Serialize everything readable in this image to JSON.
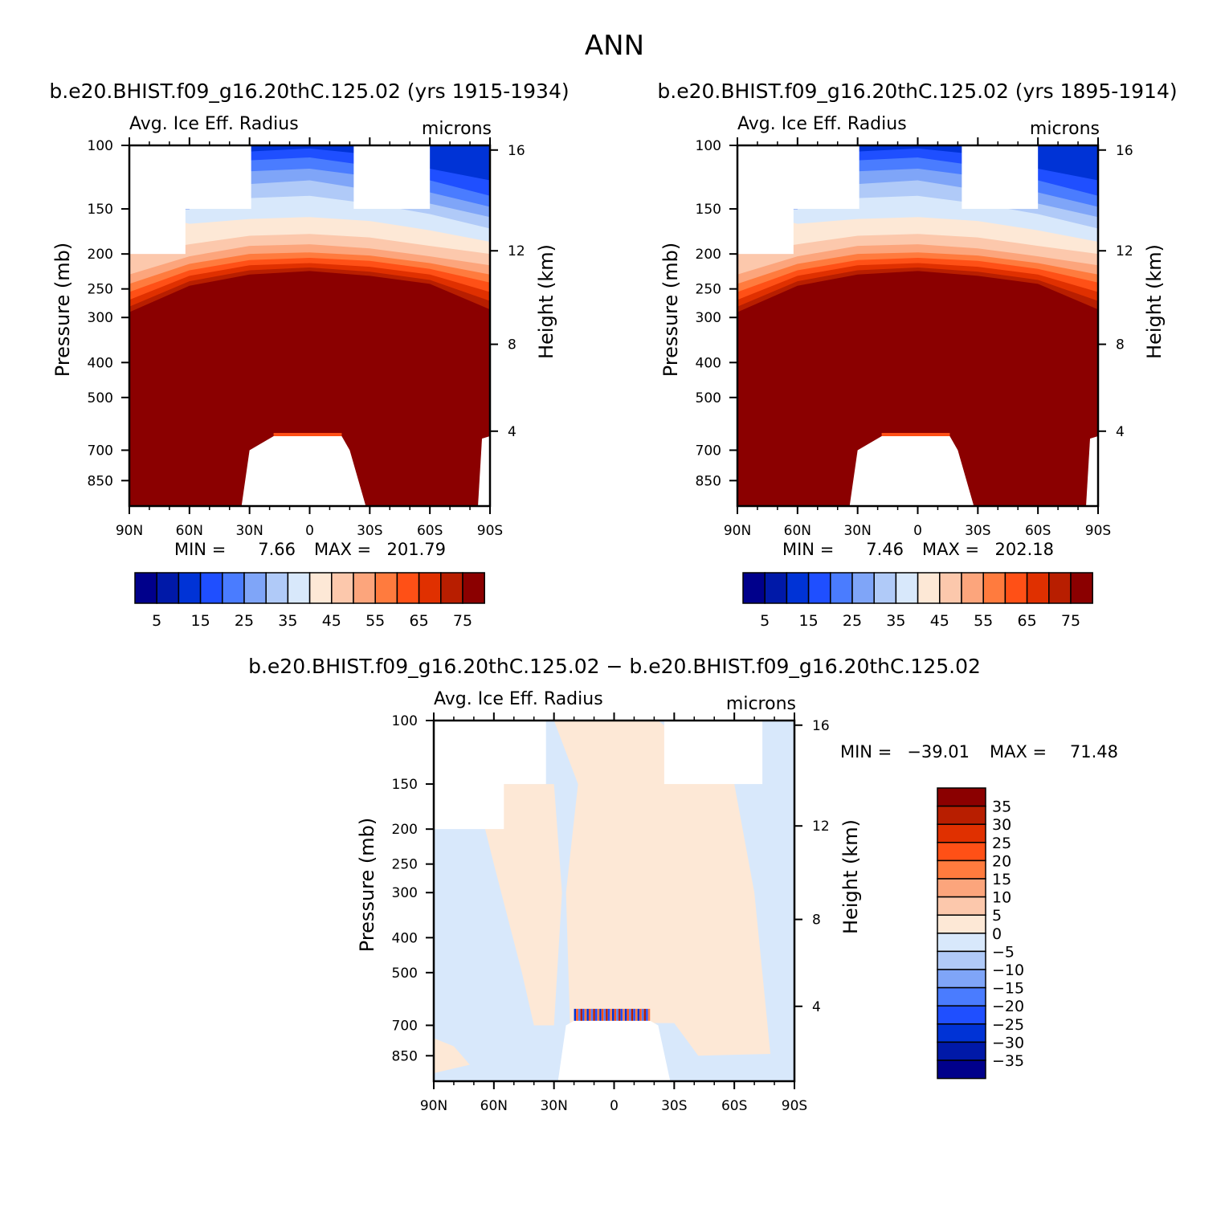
{
  "page": {
    "title": "ANN"
  },
  "panels": [
    {
      "id": "top-left",
      "title": "b.e20.BHIST.f09_g16.20thC.125.02 (yrs 1915-1934)",
      "field_label": "Avg. Ice Eff. Radius",
      "units": "microns",
      "stats": {
        "min_label": "MIN =",
        "min": "7.66",
        "max_label": "MAX =",
        "max": "201.79"
      }
    },
    {
      "id": "top-right",
      "title": "b.e20.BHIST.f09_g16.20thC.125.02 (yrs 1895-1914)",
      "field_label": "Avg. Ice Eff. Radius",
      "units": "microns",
      "stats": {
        "min_label": "MIN =",
        "min": "7.46",
        "max_label": "MAX =",
        "max": "202.18"
      }
    },
    {
      "id": "bottom",
      "title": "b.e20.BHIST.f09_g16.20thC.125.02 − b.e20.BHIST.f09_g16.20thC.125.02",
      "field_label": "Avg. Ice Eff. Radius",
      "units": "microns",
      "stats": {
        "min_label": "MIN =",
        "min": "−39.01",
        "max_label": "MAX =",
        "max": "71.48"
      }
    }
  ],
  "chart_data": [
    {
      "type": "heatmap",
      "panel": "top-left",
      "xlabel": "",
      "ylabel": "Pressure (mb)",
      "y2label": "Height (km)",
      "x_ticks": [
        "90N",
        "60N",
        "30N",
        "0",
        "30S",
        "60S",
        "90S"
      ],
      "y_ticks": [
        100,
        150,
        200,
        250,
        300,
        400,
        500,
        700,
        850
      ],
      "y2_ticks": [
        16,
        12,
        8,
        4
      ],
      "y_scale": "log-pressure",
      "ylim": [
        100,
        1000
      ],
      "colorbar": {
        "levels": [
          5,
          10,
          15,
          20,
          25,
          30,
          35,
          40,
          45,
          50,
          55,
          60,
          65,
          70,
          75
        ],
        "tick_labels": [
          "5",
          "15",
          "25",
          "35",
          "45",
          "55",
          "65",
          "75"
        ]
      },
      "min": 7.66,
      "max": 201.79
    },
    {
      "type": "heatmap",
      "panel": "top-right",
      "xlabel": "",
      "ylabel": "Pressure (mb)",
      "y2label": "Height (km)",
      "x_ticks": [
        "90N",
        "60N",
        "30N",
        "0",
        "30S",
        "60S",
        "90S"
      ],
      "y_ticks": [
        100,
        150,
        200,
        250,
        300,
        400,
        500,
        700,
        850
      ],
      "y2_ticks": [
        16,
        12,
        8,
        4
      ],
      "y_scale": "log-pressure",
      "ylim": [
        100,
        1000
      ],
      "colorbar": {
        "levels": [
          5,
          10,
          15,
          20,
          25,
          30,
          35,
          40,
          45,
          50,
          55,
          60,
          65,
          70,
          75
        ],
        "tick_labels": [
          "5",
          "15",
          "25",
          "35",
          "45",
          "55",
          "65",
          "75"
        ]
      },
      "min": 7.46,
      "max": 202.18
    },
    {
      "type": "heatmap",
      "panel": "bottom",
      "xlabel": "",
      "ylabel": "Pressure (mb)",
      "y2label": "Height (km)",
      "x_ticks": [
        "90N",
        "60N",
        "30N",
        "0",
        "30S",
        "60S",
        "90S"
      ],
      "y_ticks": [
        100,
        150,
        200,
        250,
        300,
        400,
        500,
        700,
        850
      ],
      "y2_ticks": [
        16,
        12,
        8,
        4
      ],
      "y_scale": "log-pressure",
      "ylim": [
        100,
        1000
      ],
      "colorbar": {
        "levels": [
          -35,
          -30,
          -25,
          -20,
          -15,
          -10,
          -5,
          0,
          5,
          10,
          15,
          20,
          25,
          30,
          35
        ],
        "tick_labels": [
          "35",
          "30",
          "25",
          "20",
          "15",
          "10",
          "5",
          "0",
          "−5",
          "−10",
          "−15",
          "−20",
          "−25",
          "−30",
          "−35"
        ]
      },
      "min": -39.01,
      "max": 71.48
    }
  ],
  "colors": {
    "scale": [
      "#00008b",
      "#0019a8",
      "#0033d6",
      "#1f4fff",
      "#4a7cff",
      "#7fa5f8",
      "#b0caf8",
      "#d8e8fb",
      "#fde8d6",
      "#fcc8ac",
      "#fca57c",
      "#ff7b3e",
      "#ff5016",
      "#e03000",
      "#b81e00",
      "#8b0000"
    ]
  }
}
